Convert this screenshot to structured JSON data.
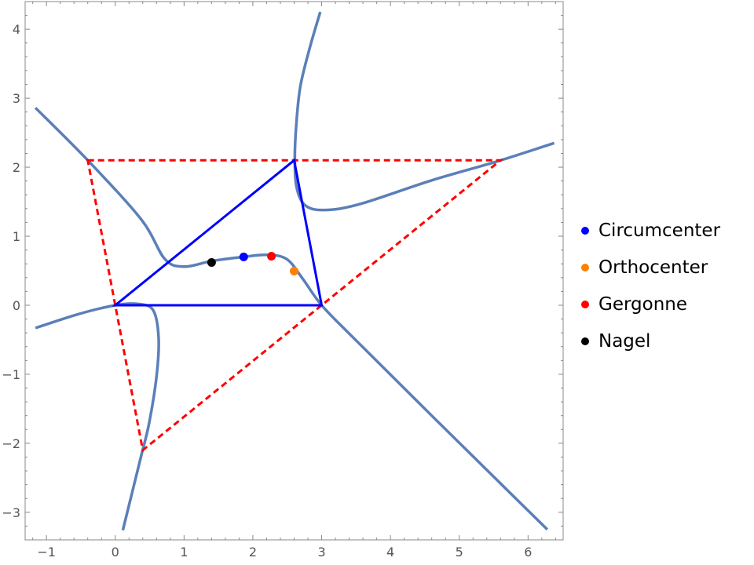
{
  "chart_data": {
    "type": "scatter",
    "title": "",
    "xlabel": "",
    "ylabel": "",
    "xlim": [
      -1.31,
      6.51
    ],
    "ylim": [
      -3.4,
      4.4
    ],
    "xticks": [
      -1,
      0,
      1,
      2,
      3,
      4,
      5,
      6
    ],
    "yticks": [
      -3,
      -2,
      -1,
      0,
      1,
      2,
      3,
      4
    ],
    "xtick_labels": [
      "−1",
      "0",
      "1",
      "2",
      "3",
      "4",
      "5",
      "6"
    ],
    "ytick_labels": [
      "−3",
      "−2",
      "−1",
      "0",
      "1",
      "2",
      "3",
      "4"
    ],
    "grid": false,
    "legend_position": "right",
    "colors": {
      "curve": "#5b7fb8",
      "triangle": "#0000ff",
      "dashed": "#ff0000"
    },
    "triangle": [
      [
        0,
        0
      ],
      [
        3,
        0
      ],
      [
        2.6,
        2.1
      ]
    ],
    "anticomplementary_triangle": [
      [
        -0.4,
        2.1
      ],
      [
        5.6,
        2.1
      ],
      [
        0.4,
        -2.1
      ]
    ],
    "curves": [
      [
        [
          -1.16,
          2.86
        ],
        [
          -0.39,
          2.09
        ],
        [
          0.38,
          1.24
        ],
        [
          0.72,
          0.67
        ],
        [
          1.0,
          0.56
        ],
        [
          1.4,
          0.64
        ],
        [
          1.86,
          0.7
        ],
        [
          2.2,
          0.73
        ],
        [
          2.49,
          0.67
        ],
        [
          2.72,
          0.39
        ],
        [
          3,
          0
        ],
        [
          3.46,
          -0.47
        ],
        [
          4.6,
          -1.6
        ],
        [
          6.28,
          -3.25
        ]
      ],
      [
        [
          -1.16,
          -0.33
        ],
        [
          -0.54,
          -0.13
        ],
        [
          0,
          0
        ],
        [
          0.32,
          0.02
        ],
        [
          0.55,
          -0.07
        ],
        [
          0.63,
          -0.47
        ],
        [
          0.6,
          -1.03
        ],
        [
          0.49,
          -1.72
        ],
        [
          0.38,
          -2.17
        ],
        [
          0.11,
          -3.26
        ]
      ],
      [
        [
          2.98,
          4.25
        ],
        [
          2.83,
          3.74
        ],
        [
          2.69,
          3.17
        ],
        [
          2.63,
          2.6
        ],
        [
          2.61,
          2.09
        ],
        [
          2.64,
          1.69
        ],
        [
          2.77,
          1.44
        ],
        [
          3.06,
          1.38
        ],
        [
          3.57,
          1.47
        ],
        [
          4.6,
          1.81
        ],
        [
          5.57,
          2.09
        ],
        [
          6.38,
          2.35
        ]
      ]
    ],
    "series": [
      {
        "name": "Circumcenter",
        "color": "#0000ff",
        "x": [
          1.867
        ],
        "y": [
          0.7
        ]
      },
      {
        "name": "Orthocenter",
        "color": "#ff8000",
        "x": [
          2.6
        ],
        "y": [
          0.495
        ]
      },
      {
        "name": "Gergonne",
        "color": "#ff0000",
        "x": [
          2.27
        ],
        "y": [
          0.71
        ]
      },
      {
        "name": "Nagel",
        "color": "#000000",
        "x": [
          1.4
        ],
        "y": [
          0.62
        ]
      }
    ]
  }
}
